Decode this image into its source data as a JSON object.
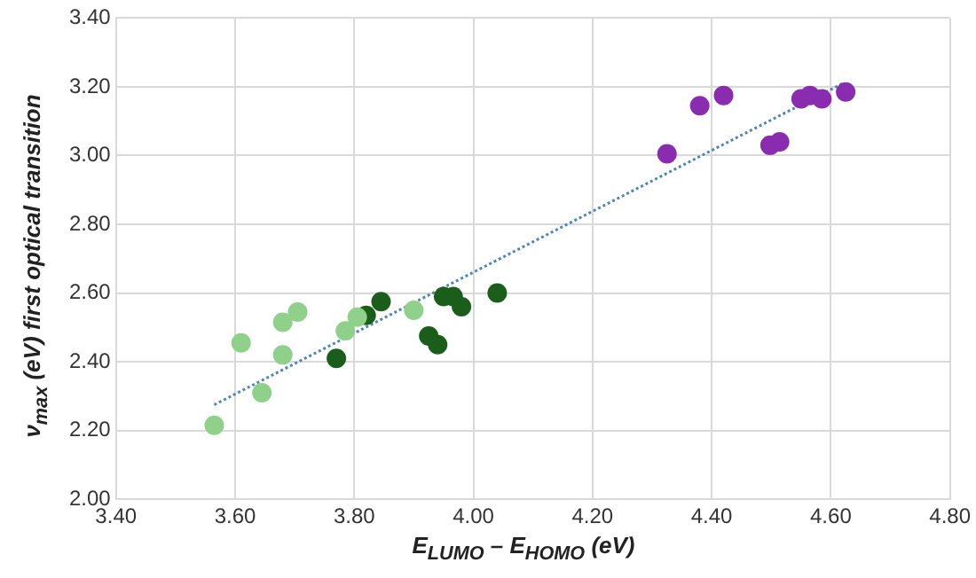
{
  "chart_data": {
    "type": "scatter",
    "xlabel": "E$_{LUMO}$ – E$_{HOMO}$ (eV)",
    "ylabel": "ν$_{max}$ (eV) first optical transition",
    "xlim": [
      3.4,
      4.8
    ],
    "xticks": [
      {
        "value": 3.4,
        "label": "3.40"
      },
      {
        "value": 3.6,
        "label": "3.60"
      },
      {
        "value": 3.8,
        "label": "3.80"
      },
      {
        "value": 4.0,
        "label": "4.00"
      },
      {
        "value": 4.2,
        "label": "4.20"
      },
      {
        "value": 4.4,
        "label": "4.40"
      },
      {
        "value": 4.6,
        "label": "4.60"
      },
      {
        "value": 4.8,
        "label": "4.80"
      }
    ],
    "ylim": [
      2.0,
      3.4
    ],
    "yticks": [
      {
        "value": 2.0,
        "label": "2.00"
      },
      {
        "value": 2.2,
        "label": "2.20"
      },
      {
        "value": 2.4,
        "label": "2.40"
      },
      {
        "value": 2.6,
        "label": "2.60"
      },
      {
        "value": 2.8,
        "label": "2.80"
      },
      {
        "value": 3.0,
        "label": "3.00"
      },
      {
        "value": 3.2,
        "label": "3.20"
      },
      {
        "value": 3.4,
        "label": "3.40"
      }
    ],
    "grid": true,
    "marker": "circle",
    "legend": false,
    "series": [
      {
        "color": "#8fd18a",
        "x": [
          3.565,
          3.61,
          3.645,
          3.68,
          3.68,
          3.705,
          3.785,
          3.805,
          3.9
        ],
        "values": [
          2.215,
          2.455,
          2.31,
          2.515,
          2.42,
          2.545,
          2.49,
          2.53,
          2.55
        ]
      },
      {
        "color": "#1b5e1b",
        "x": [
          3.77,
          3.82,
          3.845,
          3.925,
          3.94,
          3.95,
          3.966,
          3.98,
          4.04
        ],
        "values": [
          2.41,
          2.535,
          2.575,
          2.475,
          2.45,
          2.59,
          2.59,
          2.56,
          2.6
        ]
      },
      {
        "color": "#8a2cb0",
        "x": [
          4.325,
          4.38,
          4.42,
          4.498,
          4.514,
          4.55,
          4.565,
          4.585,
          4.625
        ],
        "values": [
          3.005,
          3.145,
          3.175,
          3.03,
          3.04,
          3.165,
          3.175,
          3.165,
          3.185
        ]
      },
      {
        "type": "line",
        "color": "#4f86b8",
        "line_style": "dotted",
        "marker": "none",
        "x": [
          3.565,
          4.62
        ],
        "values": [
          2.275,
          3.21
        ]
      }
    ]
  }
}
